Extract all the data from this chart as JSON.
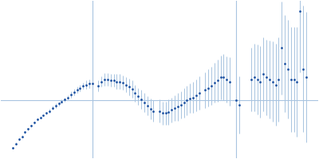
{
  "background_color": "#ffffff",
  "point_color": "#1a4fa0",
  "errorbar_color": "#a8c4e0",
  "line_color": "#a8c4e0",
  "figsize": [
    4.0,
    2.0
  ],
  "dpi": 100,
  "xlim": [
    -0.02,
    1.02
  ],
  "ylim": [
    -0.55,
    0.95
  ],
  "hline_y": 0.0,
  "vline_x": 0.28,
  "vline2_x": 0.75,
  "x": [
    0.02,
    0.03,
    0.04,
    0.05,
    0.06,
    0.07,
    0.08,
    0.09,
    0.1,
    0.11,
    0.12,
    0.13,
    0.14,
    0.15,
    0.16,
    0.17,
    0.18,
    0.19,
    0.2,
    0.21,
    0.22,
    0.23,
    0.24,
    0.25,
    0.26,
    0.27,
    0.28,
    0.3,
    0.31,
    0.32,
    0.33,
    0.34,
    0.35,
    0.36,
    0.37,
    0.38,
    0.39,
    0.4,
    0.41,
    0.42,
    0.43,
    0.44,
    0.45,
    0.46,
    0.47,
    0.48,
    0.5,
    0.51,
    0.52,
    0.53,
    0.54,
    0.55,
    0.56,
    0.57,
    0.58,
    0.59,
    0.6,
    0.61,
    0.62,
    0.63,
    0.65,
    0.66,
    0.67,
    0.68,
    0.69,
    0.7,
    0.71,
    0.72,
    0.73,
    0.75,
    0.76,
    0.8,
    0.81,
    0.82,
    0.83,
    0.84,
    0.85,
    0.86,
    0.87,
    0.88,
    0.89,
    0.9,
    0.91,
    0.92,
    0.93,
    0.94,
    0.95,
    0.96,
    0.97,
    0.98
  ],
  "y": [
    -0.45,
    -0.41,
    -0.37,
    -0.34,
    -0.3,
    -0.27,
    -0.24,
    -0.21,
    -0.18,
    -0.16,
    -0.14,
    -0.12,
    -0.1,
    -0.07,
    -0.05,
    -0.03,
    -0.01,
    0.01,
    0.03,
    0.06,
    0.08,
    0.1,
    0.12,
    0.14,
    0.15,
    0.16,
    0.16,
    0.14,
    0.18,
    0.2,
    0.2,
    0.19,
    0.19,
    0.18,
    0.18,
    0.17,
    0.15,
    0.13,
    0.11,
    0.07,
    0.04,
    0.01,
    -0.02,
    -0.05,
    -0.08,
    -0.1,
    -0.1,
    -0.12,
    -0.12,
    -0.11,
    -0.09,
    -0.07,
    -0.06,
    -0.04,
    -0.02,
    0.0,
    0.02,
    0.03,
    0.05,
    0.07,
    0.1,
    0.12,
    0.14,
    0.17,
    0.19,
    0.22,
    0.22,
    0.2,
    0.18,
    0.0,
    -0.04,
    0.2,
    0.22,
    0.2,
    0.18,
    0.25,
    0.22,
    0.2,
    0.18,
    0.15,
    0.2,
    0.5,
    0.35,
    0.3,
    0.2,
    0.2,
    0.18,
    0.85,
    0.3,
    0.22
  ],
  "yerr": [
    0.01,
    0.01,
    0.01,
    0.01,
    0.01,
    0.01,
    0.01,
    0.01,
    0.01,
    0.01,
    0.01,
    0.01,
    0.02,
    0.02,
    0.02,
    0.02,
    0.02,
    0.02,
    0.02,
    0.03,
    0.03,
    0.03,
    0.03,
    0.03,
    0.04,
    0.04,
    0.04,
    0.05,
    0.05,
    0.06,
    0.06,
    0.06,
    0.06,
    0.07,
    0.07,
    0.07,
    0.07,
    0.08,
    0.08,
    0.08,
    0.08,
    0.09,
    0.09,
    0.09,
    0.1,
    0.1,
    0.11,
    0.11,
    0.11,
    0.12,
    0.12,
    0.12,
    0.13,
    0.13,
    0.14,
    0.14,
    0.14,
    0.15,
    0.15,
    0.16,
    0.17,
    0.18,
    0.18,
    0.19,
    0.2,
    0.21,
    0.22,
    0.22,
    0.23,
    0.26,
    0.27,
    0.3,
    0.32,
    0.33,
    0.34,
    0.35,
    0.36,
    0.37,
    0.38,
    0.39,
    0.4,
    0.44,
    0.46,
    0.47,
    0.5,
    0.5,
    0.52,
    0.58,
    0.6,
    0.62
  ]
}
